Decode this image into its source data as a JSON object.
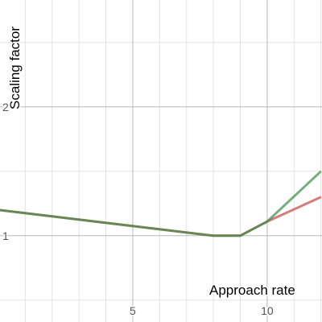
{
  "chart_data": {
    "type": "line",
    "x_label": "Approach rate",
    "y_label": "Scaling factor",
    "xlim": [
      0.06,
      12.04
    ],
    "ylim": [
      0.33,
      2.83
    ],
    "xticks": [
      5,
      10
    ],
    "yticks": [
      1,
      2
    ],
    "x_minor_grid": [
      1,
      2,
      3,
      4,
      6,
      7,
      8,
      9,
      11,
      12
    ],
    "y_minor_grid": [
      0.5,
      1.5,
      2.5
    ],
    "grid": true,
    "x": [
      0,
      8,
      9,
      10,
      12
    ],
    "series": [
      {
        "color": "#c74440",
        "values": [
          1.2,
          1.0,
          1.0,
          1.11,
          1.3
        ]
      },
      {
        "color": "#388c46",
        "values": [
          1.2,
          1.0,
          1.0,
          1.11,
          1.5
        ]
      }
    ]
  }
}
